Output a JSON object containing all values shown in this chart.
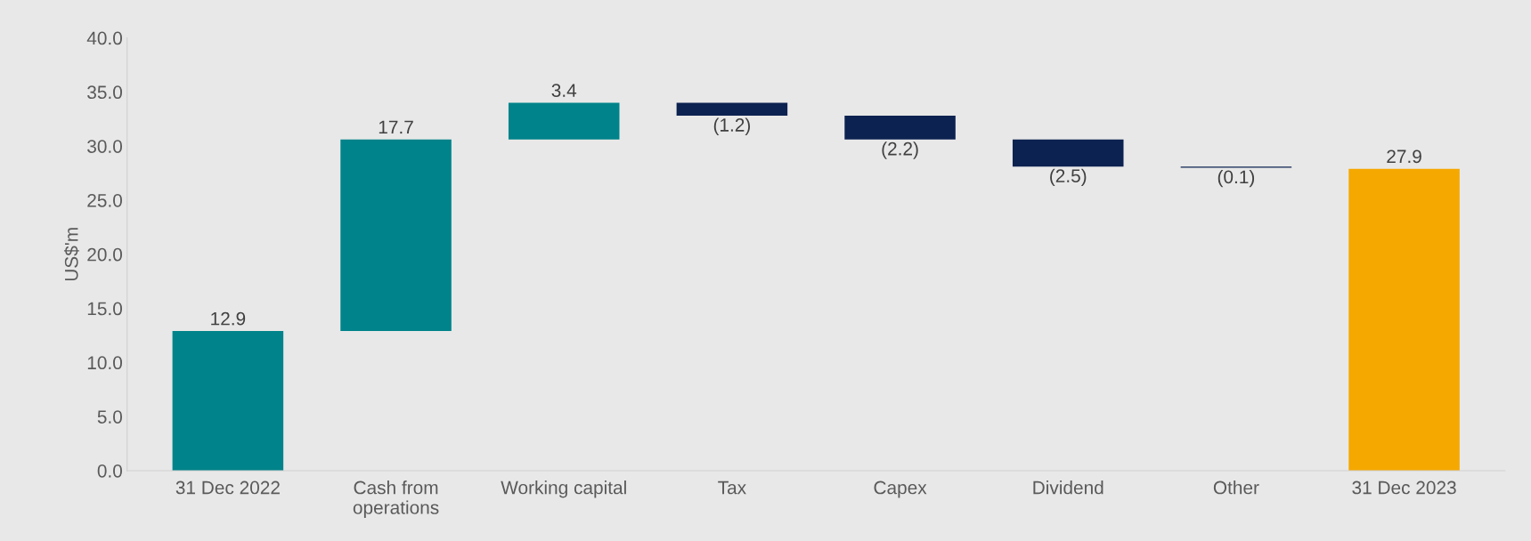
{
  "chart_data": {
    "type": "bar",
    "ylabel": "US$'m",
    "categories": [
      "31 Dec 2022",
      "Cash from\noperations",
      "Working capital",
      "Tax",
      "Capex",
      "Dividend",
      "Other",
      "31 Dec 2023"
    ],
    "values": [
      12.9,
      17.7,
      3.4,
      -1.2,
      -2.2,
      -2.5,
      -0.1,
      27.9
    ],
    "base": [
      0,
      12.9,
      30.6,
      34.0,
      32.8,
      30.6,
      28.1,
      0
    ],
    "colors": [
      "#00838a",
      "#00838a",
      "#00838a",
      "#0c2250",
      "#0c2250",
      "#0c2250",
      "#0c2250",
      "#f5a800"
    ],
    "value_labels": [
      "12.9",
      "17.7",
      "3.4",
      "(1.2)",
      "(2.2)",
      "(2.5)",
      "(0.1)",
      "27.9"
    ],
    "ylim": [
      0,
      40
    ],
    "yticks": [
      {
        "value": 0,
        "label": "0.0"
      },
      {
        "value": 5,
        "label": "5.0"
      },
      {
        "value": 10,
        "label": "10.0"
      },
      {
        "value": 15,
        "label": "15.0"
      },
      {
        "value": 20,
        "label": "20.0"
      },
      {
        "value": 25,
        "label": "25.0"
      },
      {
        "value": 30,
        "label": "30.0"
      },
      {
        "value": 35,
        "label": "35.0"
      },
      {
        "value": 40,
        "label": "40.0"
      }
    ],
    "grid": false
  }
}
